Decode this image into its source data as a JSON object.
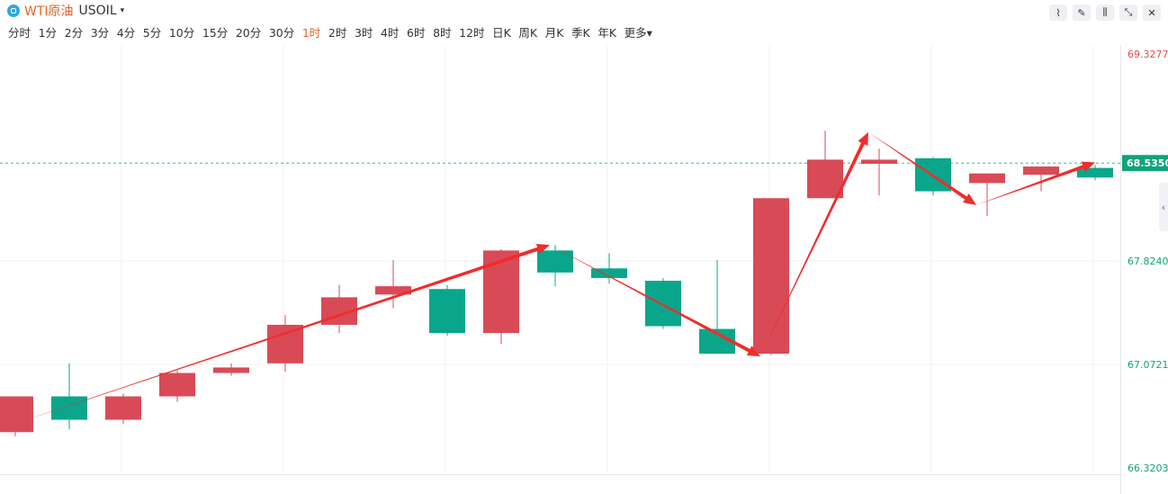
{
  "header": {
    "title": "WTI原油",
    "symbol": "USOIL",
    "caret": "▾",
    "tools": [
      {
        "icon": "draw-line-icon",
        "glyph": "⌇"
      },
      {
        "icon": "pencil-icon",
        "glyph": "✎"
      },
      {
        "icon": "candlestick-icon",
        "glyph": "⫼"
      },
      {
        "icon": "collapse-icon",
        "glyph": "⤡"
      },
      {
        "icon": "close-icon",
        "glyph": "✕"
      }
    ]
  },
  "periods": [
    {
      "label": "分时",
      "active": false
    },
    {
      "label": "1分",
      "active": false
    },
    {
      "label": "2分",
      "active": false
    },
    {
      "label": "3分",
      "active": false
    },
    {
      "label": "4分",
      "active": false
    },
    {
      "label": "5分",
      "active": false
    },
    {
      "label": "10分",
      "active": false
    },
    {
      "label": "15分",
      "active": false
    },
    {
      "label": "20分",
      "active": false
    },
    {
      "label": "30分",
      "active": false
    },
    {
      "label": "1时",
      "active": true
    },
    {
      "label": "2时",
      "active": false
    },
    {
      "label": "3时",
      "active": false
    },
    {
      "label": "4时",
      "active": false
    },
    {
      "label": "6时",
      "active": false
    },
    {
      "label": "8时",
      "active": false
    },
    {
      "label": "12时",
      "active": false
    },
    {
      "label": "日K",
      "active": false
    },
    {
      "label": "周K",
      "active": false
    },
    {
      "label": "月K",
      "active": false
    },
    {
      "label": "季K",
      "active": false
    },
    {
      "label": "年K",
      "active": false
    },
    {
      "label": "更多▾",
      "active": false
    }
  ],
  "colors": {
    "up": "#d94a57",
    "down": "#0aa68c",
    "annotation": "#f02c2c",
    "current_line": "#3dbb8c",
    "top_label": "#e14b4b",
    "axis_label": "#11a37a"
  },
  "chart_data": {
    "type": "candlestick",
    "y_axis_labels": [
      "69.3277",
      "67.8240",
      "67.0721",
      "66.3203"
    ],
    "current_price": "68.5350",
    "ylim": [
      66.3203,
      69.3277
    ],
    "grid": true,
    "candles": [
      {
        "open": 66.58,
        "high": 66.82,
        "low": 66.55,
        "close": 66.84
      },
      {
        "open": 66.84,
        "high": 67.08,
        "low": 66.6,
        "close": 66.67
      },
      {
        "open": 66.67,
        "high": 66.86,
        "low": 66.64,
        "close": 66.84
      },
      {
        "open": 66.84,
        "high": 67.03,
        "low": 66.8,
        "close": 67.01
      },
      {
        "open": 67.01,
        "high": 67.08,
        "low": 66.99,
        "close": 67.05
      },
      {
        "open": 67.08,
        "high": 67.43,
        "low": 67.02,
        "close": 67.36
      },
      {
        "open": 67.36,
        "high": 67.65,
        "low": 67.3,
        "close": 67.56
      },
      {
        "open": 67.58,
        "high": 67.83,
        "low": 67.48,
        "close": 67.64
      },
      {
        "open": 67.62,
        "high": 67.65,
        "low": 67.28,
        "close": 67.3
      },
      {
        "open": 67.3,
        "high": 67.91,
        "low": 67.22,
        "close": 67.9
      },
      {
        "open": 67.9,
        "high": 67.94,
        "low": 67.64,
        "close": 67.74
      },
      {
        "open": 67.77,
        "high": 67.88,
        "low": 67.66,
        "close": 67.7
      },
      {
        "open": 67.68,
        "high": 67.7,
        "low": 67.33,
        "close": 67.35
      },
      {
        "open": 67.33,
        "high": 67.83,
        "low": 67.16,
        "close": 67.15
      },
      {
        "open": 67.15,
        "high": 68.28,
        "low": 67.14,
        "close": 68.28
      },
      {
        "open": 68.28,
        "high": 68.77,
        "low": 68.28,
        "close": 68.56
      },
      {
        "open": 68.53,
        "high": 68.64,
        "low": 68.3,
        "close": 68.56
      },
      {
        "open": 68.57,
        "high": 68.58,
        "low": 68.3,
        "close": 68.33
      },
      {
        "open": 68.39,
        "high": 68.45,
        "low": 68.15,
        "close": 68.46
      },
      {
        "open": 68.45,
        "high": 68.51,
        "low": 68.33,
        "close": 68.51
      },
      {
        "open": 68.5,
        "high": 68.52,
        "low": 68.41,
        "close": 68.43
      }
    ],
    "annotation_path": [
      {
        "candle": -0.1,
        "price": 66.63
      },
      {
        "candle": 9.9,
        "price": 67.94
      },
      {
        "candle": 13.8,
        "price": 67.13
      },
      {
        "candle": 15.8,
        "price": 68.76
      },
      {
        "candle": 17.8,
        "price": 68.23
      },
      {
        "candle": 20.0,
        "price": 68.54
      }
    ]
  }
}
